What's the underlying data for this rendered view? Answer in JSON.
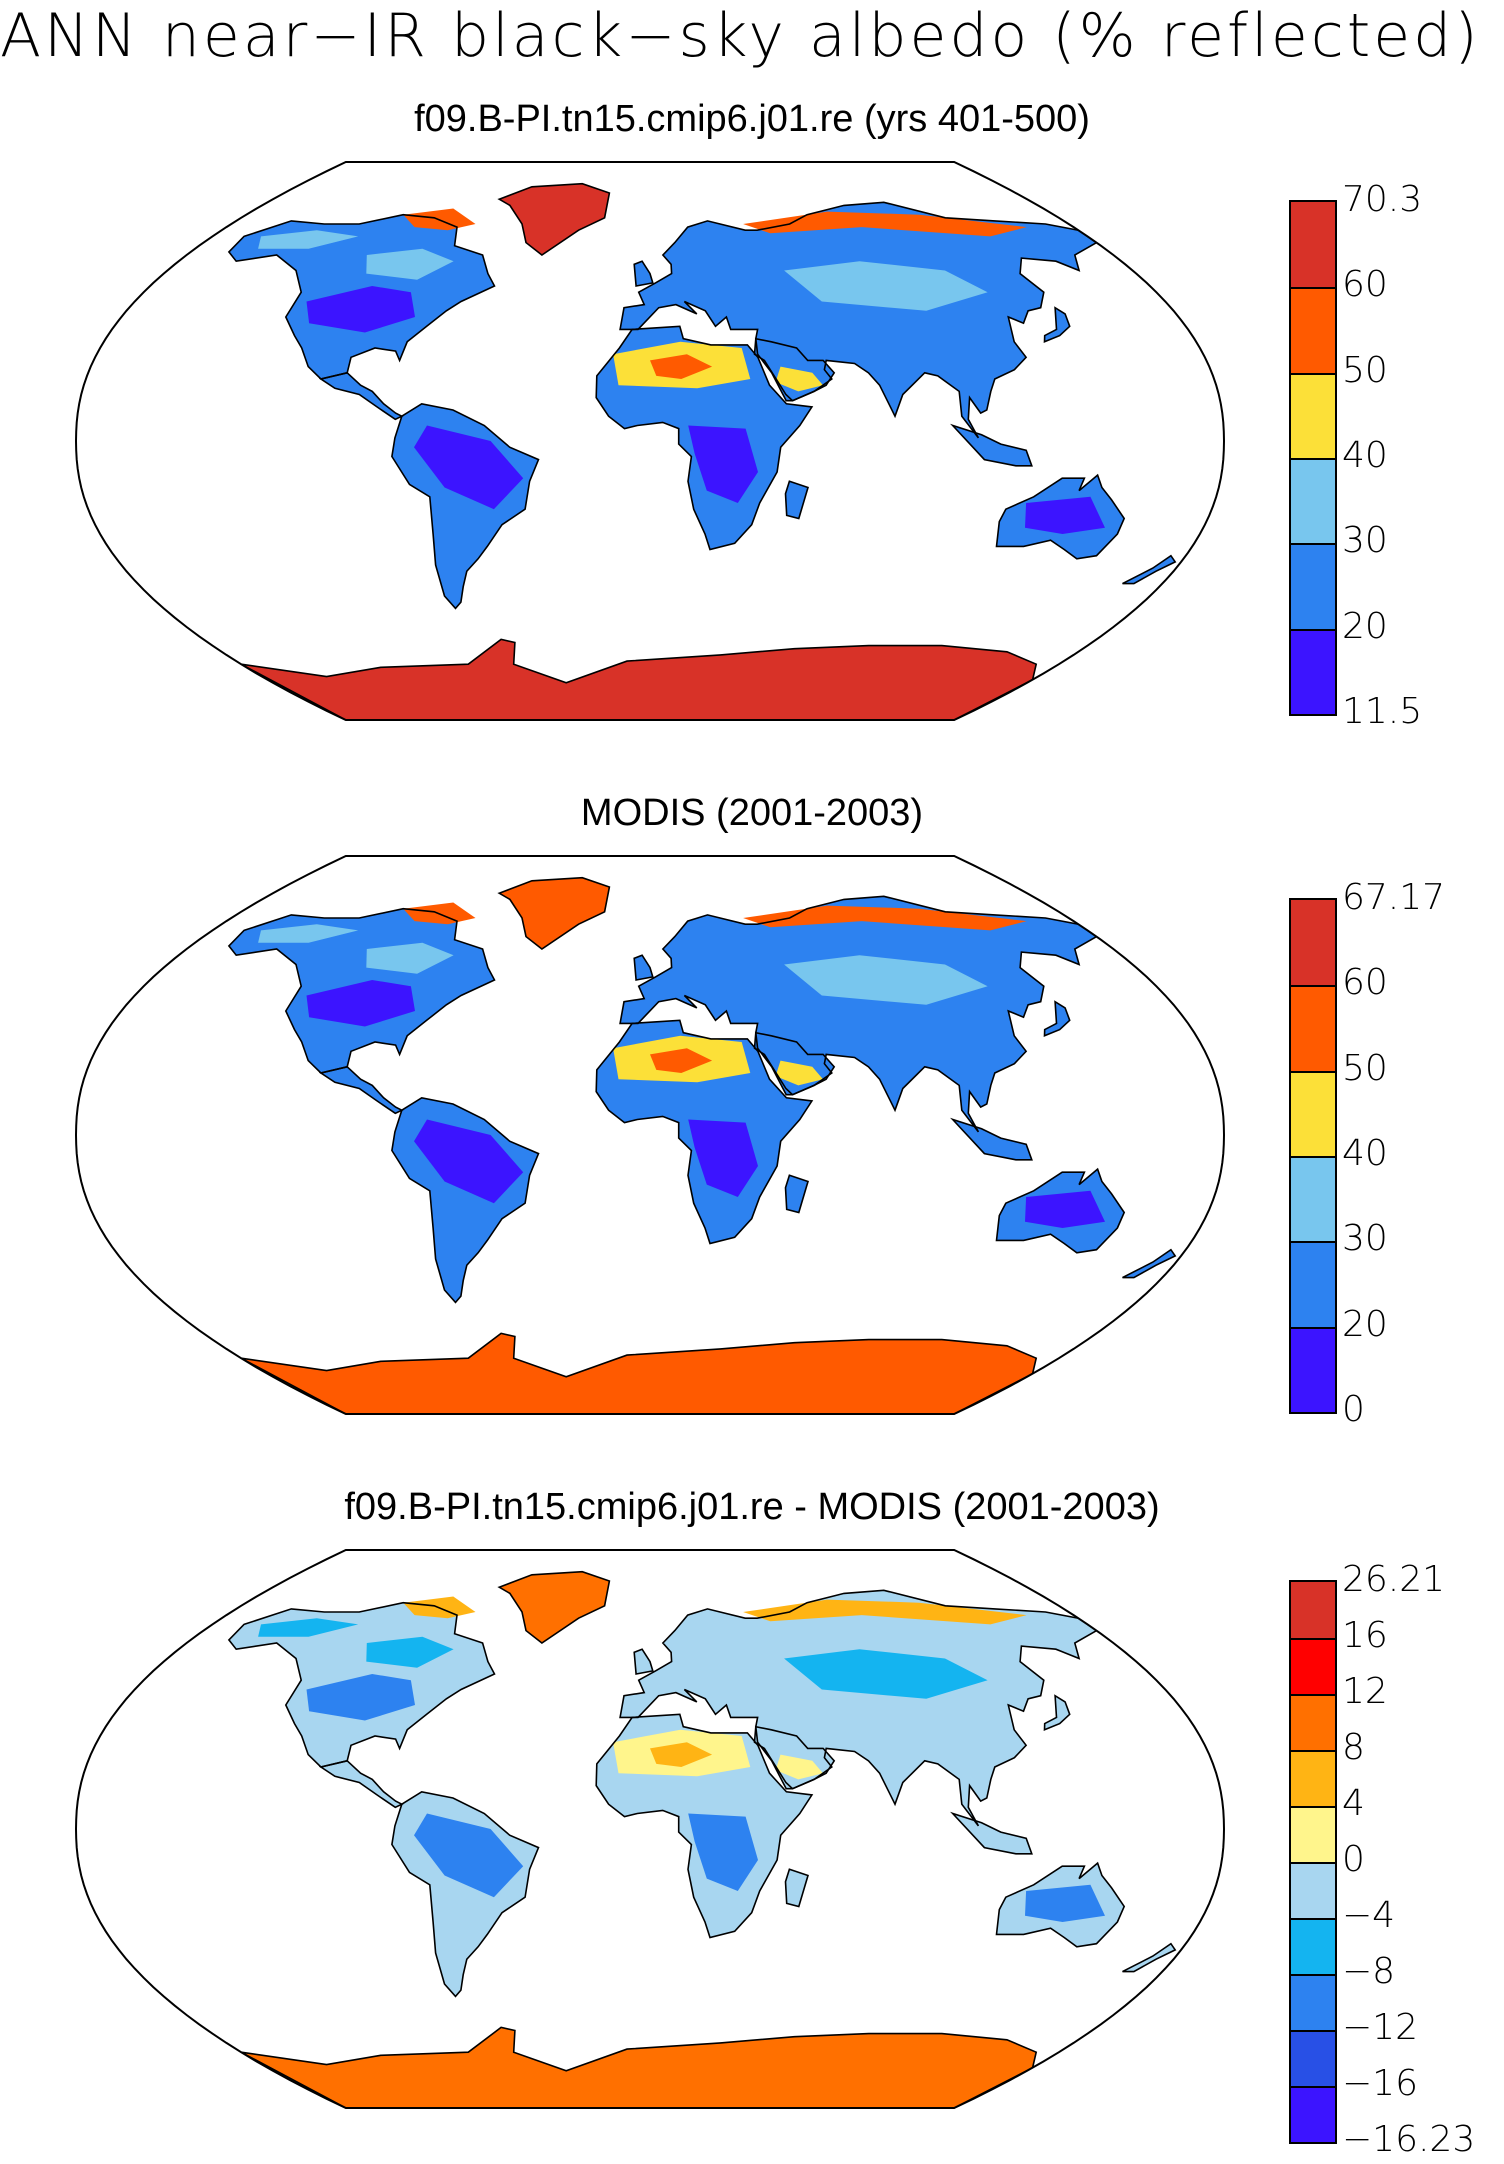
{
  "title": "ANN near−IR black−sky albedo (% reflected)",
  "panels": [
    {
      "title": "f09.B-PI.tn15.cmip6.j01.re (yrs 401-500)",
      "colorbar": {
        "labels": [
          "70.3",
          "60",
          "50",
          "40",
          "30",
          "20",
          "11.5"
        ],
        "colors": [
          "#d83228",
          "#ff5a00",
          "#fce038",
          "#78c6ee",
          "#2d82f0",
          "#3c14ff"
        ]
      },
      "field_colors": {
        "ocean": "#ffffff",
        "background_land": "#2d82f0",
        "low": "#3c14ff",
        "mid": "#78c6ee",
        "desert": "#fce038",
        "hot": "#ff5a00",
        "ice": "#d83228"
      }
    },
    {
      "title": "MODIS (2001-2003)",
      "colorbar": {
        "labels": [
          "67.17",
          "60",
          "50",
          "40",
          "30",
          "20",
          "0"
        ],
        "colors": [
          "#d83228",
          "#ff5a00",
          "#fce038",
          "#78c6ee",
          "#2d82f0",
          "#3c14ff"
        ]
      },
      "field_colors": {
        "ocean": "#ffffff",
        "background_land": "#2d82f0",
        "low": "#3c14ff",
        "mid": "#78c6ee",
        "desert": "#fce038",
        "hot": "#ff5a00",
        "ice": "#ff5a00"
      }
    },
    {
      "title": "f09.B-PI.tn15.cmip6.j01.re - MODIS (2001-2003)",
      "colorbar": {
        "labels": [
          "26.21",
          "16",
          "12",
          "8",
          "4",
          "0",
          "−4",
          "−8",
          "−12",
          "−16",
          "−16.23"
        ],
        "colors": [
          "#d83228",
          "#ff0000",
          "#ff7000",
          "#ffb414",
          "#fff58c",
          "#a8d6f0",
          "#14b4f0",
          "#2d82f0",
          "#2850e6",
          "#3c14ff"
        ]
      },
      "field_colors": {
        "ocean": "#ffffff",
        "background_land": "#a8d6f0",
        "low": "#2d82f0",
        "mid": "#14b4f0",
        "desert": "#fff58c",
        "hot": "#ffb414",
        "ice": "#ff7000"
      }
    }
  ]
}
